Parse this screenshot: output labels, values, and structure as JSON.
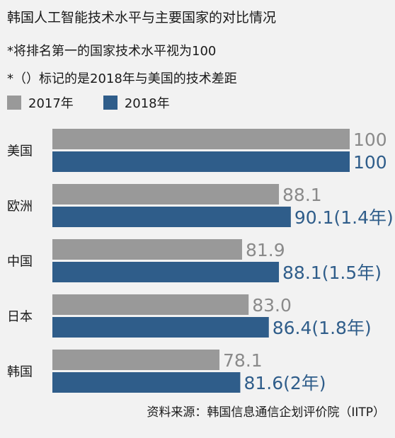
{
  "title": "韩国人工智能技术水平与主要国家的对比情况",
  "notes": [
    "*将排名第一的国家技术水平视为100",
    "*（）标记的是2018年与美国的技术差距"
  ],
  "source": "资料来源：韩国信息通信企划评价院（IITP）",
  "colors": {
    "s2017": "#999999",
    "s2018": "#2f5d8a",
    "label2017": "#8a8a8a",
    "label2018": "#2f5d8a"
  },
  "chart_data": {
    "type": "bar",
    "orientation": "horizontal",
    "categories": [
      "美国",
      "欧洲",
      "中国",
      "日本",
      "韩国"
    ],
    "series": [
      {
        "name": "2017年",
        "values": [
          100,
          88.1,
          81.9,
          83.0,
          78.1
        ],
        "labels": [
          "100",
          "88.1",
          "81.9",
          "83.0",
          "78.1"
        ]
      },
      {
        "name": "2018年",
        "values": [
          100,
          90.1,
          88.1,
          86.4,
          81.6
        ],
        "labels": [
          "100",
          "90.1(1.4年)",
          "88.1(1.5年)",
          "86.4(1.8年)",
          "81.6(2年)"
        ]
      }
    ],
    "xlim": [
      50,
      100
    ],
    "legend": "top-left"
  }
}
